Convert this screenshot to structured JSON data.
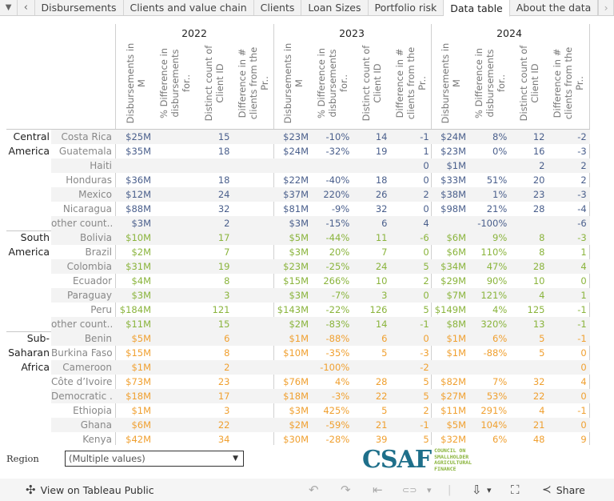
{
  "tabs": {
    "menu_icon": "▼",
    "prev_icon": "‹",
    "next_icon": "›",
    "items": [
      "Disbursements",
      "Clients and value chain",
      "Clients",
      "Loan Sizes",
      "Portfolio risk",
      "Data table",
      "About the data"
    ],
    "active": "Data table"
  },
  "table": {
    "years": [
      "2022",
      "2023",
      "2024"
    ],
    "columns": [
      "Disbursements in M",
      "% Difference in disbursements for..",
      "Distinct count of Client ID",
      "Difference in # clients from the Pr.."
    ],
    "colors": {
      "Central America": "#4a5f8c",
      "South America": "#8ab43c",
      "Sub-Saharan Africa": "#f0a030"
    },
    "groups": [
      {
        "region_lines": [
          "Central",
          "America"
        ],
        "color_class": "c-blue",
        "rows": [
          {
            "country": "Costa Rica",
            "values": [
              "$25M",
              "",
              "15",
              "",
              "$23M",
              "-10%",
              "14",
              "-1",
              "$24M",
              "8%",
              "12",
              "-2"
            ]
          },
          {
            "country": "Guatemala",
            "values": [
              "$35M",
              "",
              "18",
              "",
              "$24M",
              "-32%",
              "19",
              "1",
              "$23M",
              "0%",
              "16",
              "-3"
            ]
          },
          {
            "country": "Haiti",
            "values": [
              "",
              "",
              "",
              "",
              "",
              "",
              "",
              "0",
              "$1M",
              "",
              "2",
              "2"
            ]
          },
          {
            "country": "Honduras",
            "values": [
              "$36M",
              "",
              "18",
              "",
              "$22M",
              "-40%",
              "18",
              "0",
              "$33M",
              "51%",
              "20",
              "2"
            ]
          },
          {
            "country": "Mexico",
            "values": [
              "$12M",
              "",
              "24",
              "",
              "$37M",
              "220%",
              "26",
              "2",
              "$38M",
              "1%",
              "23",
              "-3"
            ]
          },
          {
            "country": "Nicaragua",
            "values": [
              "$88M",
              "",
              "32",
              "",
              "$81M",
              "-9%",
              "32",
              "0",
              "$98M",
              "21%",
              "28",
              "-4"
            ]
          },
          {
            "country": "other count..",
            "values": [
              "$3M",
              "",
              "2",
              "",
              "$3M",
              "-15%",
              "6",
              "4",
              "",
              "-100%",
              "",
              "-6"
            ]
          }
        ]
      },
      {
        "region_lines": [
          "South",
          "America"
        ],
        "color_class": "c-green",
        "rows": [
          {
            "country": "Bolivia",
            "values": [
              "$10M",
              "",
              "17",
              "",
              "$5M",
              "-44%",
              "11",
              "-6",
              "$6M",
              "9%",
              "8",
              "-3"
            ]
          },
          {
            "country": "Brazil",
            "values": [
              "$2M",
              "",
              "7",
              "",
              "$3M",
              "20%",
              "7",
              "0",
              "$6M",
              "110%",
              "8",
              "1"
            ]
          },
          {
            "country": "Colombia",
            "values": [
              "$31M",
              "",
              "19",
              "",
              "$23M",
              "-25%",
              "24",
              "5",
              "$34M",
              "47%",
              "28",
              "4"
            ]
          },
          {
            "country": "Ecuador",
            "values": [
              "$4M",
              "",
              "8",
              "",
              "$15M",
              "266%",
              "10",
              "2",
              "$29M",
              "90%",
              "10",
              "0"
            ]
          },
          {
            "country": "Paraguay",
            "values": [
              "$3M",
              "",
              "3",
              "",
              "$3M",
              "-7%",
              "3",
              "0",
              "$7M",
              "121%",
              "4",
              "1"
            ]
          },
          {
            "country": "Peru",
            "values": [
              "$184M",
              "",
              "121",
              "",
              "$143M",
              "-22%",
              "126",
              "5",
              "$149M",
              "4%",
              "125",
              "-1"
            ]
          },
          {
            "country": "other count..",
            "values": [
              "$11M",
              "",
              "15",
              "",
              "$2M",
              "-83%",
              "14",
              "-1",
              "$8M",
              "320%",
              "13",
              "-1"
            ]
          }
        ]
      },
      {
        "region_lines": [
          "Sub-",
          "Saharan",
          "Africa"
        ],
        "color_class": "c-orange",
        "rows": [
          {
            "country": "Benin",
            "values": [
              "$5M",
              "",
              "6",
              "",
              "$1M",
              "-88%",
              "6",
              "0",
              "$1M",
              "6%",
              "5",
              "-1"
            ]
          },
          {
            "country": "Burkina Faso",
            "values": [
              "$15M",
              "",
              "8",
              "",
              "$10M",
              "-35%",
              "5",
              "-3",
              "$1M",
              "-88%",
              "5",
              "0"
            ]
          },
          {
            "country": "Cameroon",
            "values": [
              "$1M",
              "",
              "2",
              "",
              "",
              "-100%",
              "",
              "-2",
              "",
              "",
              "",
              "0"
            ]
          },
          {
            "country": "Côte d’Ivoire",
            "values": [
              "$73M",
              "",
              "23",
              "",
              "$76M",
              "4%",
              "28",
              "5",
              "$82M",
              "7%",
              "32",
              "4"
            ]
          },
          {
            "country": "Democratic ..",
            "values": [
              "$18M",
              "",
              "17",
              "",
              "$18M",
              "-3%",
              "22",
              "5",
              "$27M",
              "53%",
              "22",
              "0"
            ]
          },
          {
            "country": "Ethiopia",
            "values": [
              "$1M",
              "",
              "3",
              "",
              "$3M",
              "425%",
              "5",
              "2",
              "$11M",
              "291%",
              "4",
              "-1"
            ]
          },
          {
            "country": "Ghana",
            "values": [
              "$6M",
              "",
              "22",
              "",
              "$2M",
              "-59%",
              "21",
              "-1",
              "$5M",
              "104%",
              "21",
              "0"
            ]
          },
          {
            "country": "Kenya",
            "values": [
              "$42M",
              "",
              "34",
              "",
              "$30M",
              "-28%",
              "39",
              "5",
              "$32M",
              "6%",
              "48",
              "9"
            ]
          }
        ]
      }
    ]
  },
  "filter": {
    "label": "Region",
    "value": "(Multiple values)",
    "caret": "▼"
  },
  "logo": {
    "main": "CSAF",
    "sub": [
      "COUNCIL ON",
      "SMALLHOLDER",
      "AGRICULTURAL",
      "FINANCE"
    ]
  },
  "footer": {
    "tableau_icon": "✣",
    "tableau_label": "View on Tableau Public",
    "undo_icon": "↶",
    "redo_icon": "↷",
    "revert_icon": "⇤",
    "pause_icon": "⊂⊃",
    "dropdown_icon": "▾",
    "download_icon": "⇩",
    "fullscreen_icon": "⛶",
    "share_icon": "≺",
    "share_label": "Share"
  }
}
